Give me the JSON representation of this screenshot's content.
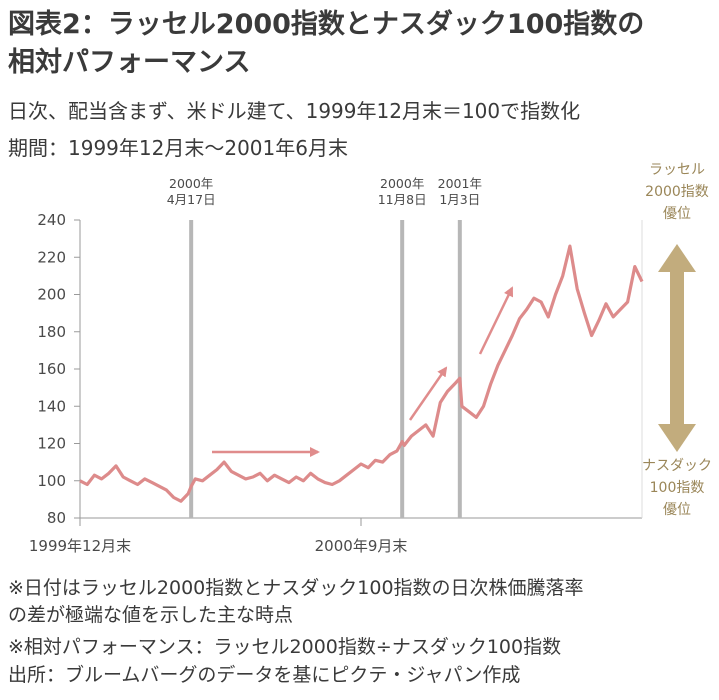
{
  "title_line1": "図表2：ラッセル2000指数とナスダック100指数の",
  "title_line2": "相対パフォーマンス",
  "subtitle_line1": "日次、配当含まず、米ドル建て、1999年12月末＝100で指数化",
  "subtitle_line2": "期間：1999年12月末〜2001年6月末",
  "notes": [
    "※日付はラッセル2000指数とナスダック100指数の日次株価騰落率",
    "の差が極端な値を示した主な時点",
    "※相対パフォーマンス：ラッセル2000指数÷ナスダック100指数",
    "出所：ブルームバーグのデータを基にピクテ・ジャパン作成"
  ],
  "side_labels": {
    "top": [
      "ラッセル",
      "2000指数",
      "優位"
    ],
    "bottom": [
      "ナスダック",
      "100指数",
      "優位"
    ]
  },
  "colors": {
    "line": "#dd8b8b",
    "arrow": "#e08c8c",
    "event": "#b7b7b7",
    "axis": "#9a9a9a",
    "side_arrow": "#c2ac7d",
    "side_text": "#9a8658"
  },
  "chart_data": {
    "type": "line",
    "ylim": [
      80,
      240
    ],
    "yticks": [
      80,
      100,
      120,
      140,
      160,
      180,
      200,
      220,
      240
    ],
    "xticklabels": [
      {
        "date": "1999-12-31",
        "label": "1999年12月末"
      },
      {
        "date": "2000-09-29",
        "label": "2000年9月末"
      }
    ],
    "xlim": [
      "1999-12-31",
      "2001-06-29"
    ],
    "events": [
      {
        "date": "2000-04-17",
        "label": [
          "2000年",
          "4月17日"
        ]
      },
      {
        "date": "2000-11-08",
        "label": [
          "2000年",
          "11月8日"
        ]
      },
      {
        "date": "2001-01-03",
        "label": [
          "2001年",
          "1月3日"
        ]
      }
    ],
    "series": [
      {
        "x": [
          "1999-12-31",
          "2000-01-07",
          "2000-01-14",
          "2000-01-21",
          "2000-01-28",
          "2000-02-04",
          "2000-02-11",
          "2000-02-18",
          "2000-02-25",
          "2000-03-03",
          "2000-03-10",
          "2000-03-17",
          "2000-03-24",
          "2000-03-31",
          "2000-04-07",
          "2000-04-14",
          "2000-04-17",
          "2000-04-21",
          "2000-04-28",
          "2000-05-05",
          "2000-05-12",
          "2000-05-19",
          "2000-05-26",
          "2000-06-02",
          "2000-06-09",
          "2000-06-16",
          "2000-06-23",
          "2000-06-30",
          "2000-07-07",
          "2000-07-14",
          "2000-07-21",
          "2000-07-28",
          "2000-08-04",
          "2000-08-11",
          "2000-08-18",
          "2000-08-25",
          "2000-09-01",
          "2000-09-08",
          "2000-09-15",
          "2000-09-22",
          "2000-09-29",
          "2000-10-06",
          "2000-10-13",
          "2000-10-20",
          "2000-10-27",
          "2000-11-03",
          "2000-11-08",
          "2000-11-10",
          "2000-11-17",
          "2000-11-24",
          "2000-12-01",
          "2000-12-08",
          "2000-12-15",
          "2000-12-22",
          "2000-12-29",
          "2001-01-03",
          "2001-01-05",
          "2001-01-12",
          "2001-01-19",
          "2001-01-26",
          "2001-02-02",
          "2001-02-09",
          "2001-02-16",
          "2001-02-23",
          "2001-03-02",
          "2001-03-09",
          "2001-03-16",
          "2001-03-23",
          "2001-03-30",
          "2001-04-06",
          "2001-04-13",
          "2001-04-20",
          "2001-04-27",
          "2001-05-04",
          "2001-05-11",
          "2001-05-18",
          "2001-05-25",
          "2001-06-01",
          "2001-06-08",
          "2001-06-15",
          "2001-06-22",
          "2001-06-29"
        ],
        "values": [
          100,
          98,
          103,
          101,
          104,
          108,
          102,
          100,
          98,
          101,
          99,
          97,
          95,
          91,
          89,
          93,
          97,
          101,
          100,
          103,
          106,
          110,
          105,
          103,
          101,
          102,
          104,
          100,
          103,
          101,
          99,
          102,
          100,
          104,
          101,
          99,
          98,
          100,
          103,
          106,
          109,
          107,
          111,
          110,
          114,
          116,
          121,
          119,
          124,
          127,
          130,
          124,
          142,
          148,
          152,
          155,
          140,
          137,
          134,
          140,
          152,
          162,
          170,
          178,
          187,
          192,
          198,
          196,
          188,
          200,
          210,
          226,
          203,
          190,
          178,
          186,
          195,
          188,
          192,
          196,
          215,
          207
        ]
      }
    ]
  }
}
